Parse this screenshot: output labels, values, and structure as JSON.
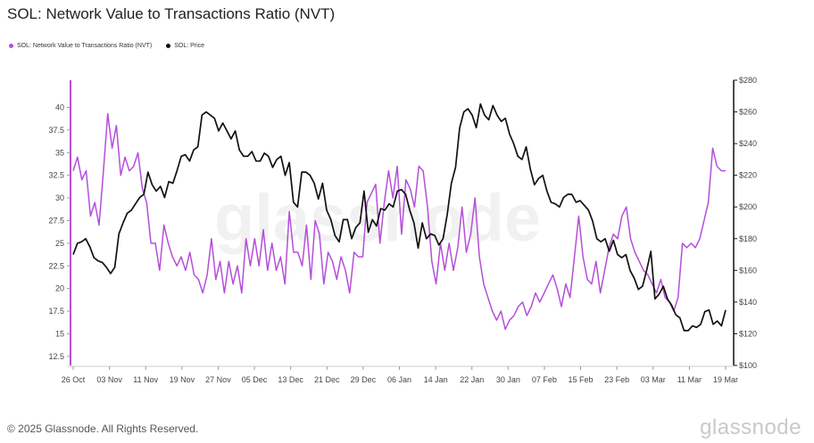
{
  "title": "SOL: Network Value to Transactions Ratio (NVT)",
  "legend": [
    {
      "label": "SOL: Network Value to Transactions Ratio (NVT)",
      "color": "#b44fd9"
    },
    {
      "label": "SOL: Price",
      "color": "#111111"
    }
  ],
  "watermark": "glassnode",
  "footer": "© 2025 Glassnode. All Rights Reserved.",
  "brand": "glassnode",
  "chart_data": {
    "type": "line",
    "title": "SOL: Network Value to Transactions Ratio (NVT)",
    "x_tick_labels": [
      "26 Oct",
      "03 Nov",
      "11 Nov",
      "19 Nov",
      "27 Nov",
      "05 Dec",
      "13 Dec",
      "21 Dec",
      "29 Dec",
      "06 Jan",
      "14 Jan",
      "22 Jan",
      "30 Jan",
      "07 Feb",
      "15 Feb",
      "23 Feb",
      "03 Mar",
      "11 Mar",
      "19 Mar"
    ],
    "x_range_days": [
      0,
      145
    ],
    "left_axis": {
      "label": "NVT",
      "ylim": [
        11.5,
        43
      ],
      "ticks": [
        12.5,
        15,
        17.5,
        20,
        22.5,
        25,
        27.5,
        30,
        32.5,
        35,
        37.5,
        40
      ],
      "tick_labels": [
        "12.5",
        "15",
        "17.5",
        "20",
        "22.5",
        "25",
        "27.5",
        "30",
        "32.5",
        "35",
        "37.5",
        "40"
      ]
    },
    "right_axis": {
      "label": "Price",
      "ylim": [
        100,
        280
      ],
      "ticks": [
        100,
        120,
        140,
        160,
        180,
        200,
        220,
        240,
        260,
        280
      ],
      "tick_labels": [
        "$100",
        "$120",
        "$140",
        "$160",
        "$180",
        "$200",
        "$220",
        "$240",
        "$260",
        "$280"
      ]
    },
    "series": [
      {
        "name": "SOL: Network Value to Transactions Ratio (NVT)",
        "axis": "left",
        "color": "#b44fd9",
        "values": [
          33,
          34.5,
          32,
          33,
          28,
          29.5,
          27,
          33,
          39.3,
          35.5,
          38,
          32.5,
          34.5,
          33,
          33.5,
          35,
          31,
          29.5,
          25,
          25,
          22,
          27,
          25,
          23.5,
          22.5,
          23.5,
          22,
          24,
          21.5,
          21,
          19.5,
          21.5,
          25.5,
          21,
          23,
          19.5,
          23,
          20.5,
          22.5,
          19.5,
          25.5,
          22.5,
          25.5,
          22.5,
          26.5,
          22,
          25,
          22,
          23.5,
          20.5,
          28.5,
          24,
          24,
          22.5,
          27,
          21,
          27.5,
          26,
          20.5,
          24,
          23,
          21,
          23.5,
          22,
          19.5,
          24,
          23.5,
          23.5,
          29.5,
          30.5,
          31.5,
          25,
          29.5,
          33,
          30,
          33.5,
          26,
          32,
          31,
          29,
          33.5,
          33,
          29,
          23,
          20.5,
          25,
          22,
          25,
          22,
          24.5,
          29,
          24,
          26,
          30,
          23.5,
          20.5,
          19,
          17.5,
          16.5,
          17.5,
          15.5,
          16.5,
          17,
          18,
          18.5,
          17,
          18,
          19.5,
          18.5,
          19.5,
          20.5,
          21.5,
          20,
          18,
          20.5,
          19,
          23.5,
          28,
          23.5,
          21,
          20.5,
          23,
          19.5,
          22,
          24.5,
          26,
          25.5,
          28,
          29,
          25.5,
          24,
          23,
          22,
          21.5,
          20.5,
          19.5,
          21,
          19,
          18.5,
          17.5,
          19,
          25,
          24.5,
          25,
          24.5,
          25.5,
          27.5,
          29.5,
          35.5,
          33.5,
          33,
          33
        ]
      },
      {
        "name": "SOL: Price",
        "axis": "right",
        "color": "#111111",
        "values": [
          170,
          177,
          178,
          180,
          175,
          168,
          166,
          165,
          162,
          158,
          162,
          183,
          190,
          196,
          198,
          202,
          206,
          208,
          222,
          214,
          210,
          213,
          206,
          216,
          215,
          223,
          232,
          233,
          229,
          236,
          238,
          258,
          260,
          258,
          256,
          248,
          253,
          248,
          243,
          248,
          236,
          232,
          232,
          235,
          229,
          229,
          234,
          232,
          225,
          230,
          232,
          220,
          228,
          203,
          200,
          222,
          222,
          220,
          215,
          205,
          215,
          198,
          192,
          182,
          178,
          192,
          192,
          180,
          187,
          190,
          210,
          184,
          192,
          188,
          199,
          198,
          202,
          200,
          210,
          211,
          208,
          198,
          190,
          174,
          190,
          180,
          183,
          182,
          176,
          180,
          195,
          215,
          225,
          250,
          260,
          262,
          258,
          250,
          265,
          258,
          255,
          264,
          258,
          254,
          256,
          246,
          240,
          232,
          230,
          238,
          224,
          214,
          218,
          220,
          210,
          203,
          202,
          200,
          206,
          208,
          208,
          203,
          204,
          201,
          198,
          191,
          180,
          178,
          180,
          172,
          179,
          170,
          168,
          170,
          160,
          155,
          148,
          150,
          160,
          172,
          142,
          145,
          150,
          142,
          138,
          132,
          130,
          122,
          122,
          125,
          124,
          126,
          134,
          135,
          126,
          128,
          125,
          135
        ]
      }
    ]
  }
}
